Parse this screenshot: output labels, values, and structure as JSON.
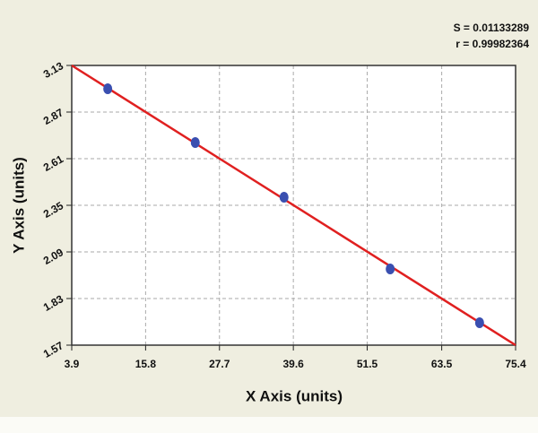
{
  "chart_data": {
    "type": "scatter",
    "annotations": [
      "S = 0.01133289",
      "r = 0.99982364"
    ],
    "x_label": "X Axis (units)",
    "y_label": "Y Axis (units)",
    "series": [
      {
        "color": "#3a4fb0",
        "x": [
          9.7,
          23.8,
          38.1,
          55.2,
          69.6
        ],
        "values": [
          3.0,
          2.7,
          2.395,
          1.995,
          1.695
        ]
      }
    ],
    "fit_line": {
      "color": "#e02020",
      "x": [
        3.9,
        75.4
      ],
      "y": [
        3.13,
        1.57
      ]
    },
    "xlim": [
      3.9,
      75.4
    ],
    "xticks": [
      3.9,
      15.8,
      27.7,
      39.6,
      51.5,
      63.5,
      75.4
    ],
    "ylim": [
      1.57,
      3.13
    ],
    "yticks": [
      1.57,
      1.83,
      2.09,
      2.35,
      2.61,
      2.87,
      3.13
    ],
    "grid": true
  }
}
